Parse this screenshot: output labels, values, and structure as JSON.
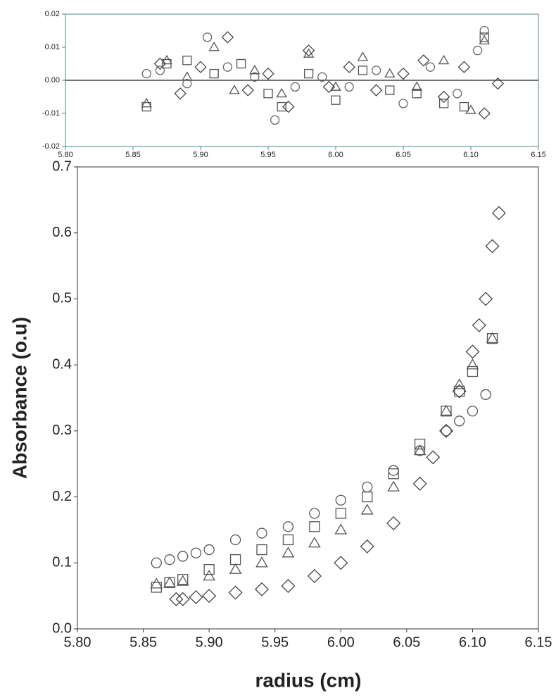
{
  "chart_data": [
    {
      "type": "scatter",
      "zero_line": true,
      "xlim": [
        5.8,
        6.15
      ],
      "xticks": [
        {
          "value": 5.8,
          "label": "5.80"
        },
        5.85,
        {
          "value": 5.9,
          "label": "5.90"
        },
        5.95,
        {
          "value": 6.0,
          "label": "6.00"
        },
        6.05,
        {
          "value": 6.1,
          "label": "6.10"
        },
        6.15
      ],
      "ylim": [
        -0.02,
        0.02
      ],
      "yticks": [
        -0.02,
        -0.01,
        {
          "value": 0,
          "label": "0.00"
        },
        0.01,
        0.02
      ],
      "series": [
        {
          "marker": "circle",
          "color": "#666666",
          "x": [
            5.86,
            5.87,
            5.89,
            5.905,
            5.92,
            5.94,
            5.955,
            5.97,
            5.99,
            6.01,
            6.03,
            6.05,
            6.07,
            6.09,
            6.105,
            6.11
          ],
          "values": [
            0.002,
            0.003,
            -0.001,
            0.013,
            0.004,
            0.001,
            -0.012,
            -0.002,
            0.001,
            -0.002,
            0.003,
            -0.007,
            0.004,
            -0.004,
            0.009,
            0.015
          ]
        },
        {
          "marker": "square",
          "color": "#555555",
          "x": [
            5.86,
            5.875,
            5.89,
            5.91,
            5.93,
            5.95,
            5.96,
            5.98,
            6.0,
            6.02,
            6.04,
            6.06,
            6.08,
            6.095,
            6.11
          ],
          "values": [
            -0.008,
            0.005,
            0.006,
            0.002,
            0.005,
            -0.004,
            -0.008,
            0.002,
            -0.006,
            0.003,
            -0.003,
            -0.004,
            -0.007,
            -0.008,
            0.013
          ]
        },
        {
          "marker": "triangle",
          "color": "#555555",
          "x": [
            5.86,
            5.875,
            5.89,
            5.91,
            5.925,
            5.94,
            5.96,
            5.98,
            6.0,
            6.02,
            6.04,
            6.06,
            6.08,
            6.1,
            6.11
          ],
          "values": [
            -0.007,
            0.006,
            0.001,
            0.01,
            -0.003,
            0.003,
            -0.004,
            0.008,
            -0.002,
            0.007,
            0.002,
            -0.002,
            0.006,
            -0.009,
            0.012
          ]
        },
        {
          "marker": "diamond",
          "color": "#444444",
          "x": [
            5.87,
            5.885,
            5.9,
            5.92,
            5.935,
            5.95,
            5.965,
            5.98,
            5.995,
            6.01,
            6.03,
            6.05,
            6.065,
            6.08,
            6.095,
            6.11,
            6.12
          ],
          "values": [
            0.005,
            -0.004,
            0.004,
            0.013,
            -0.003,
            0.002,
            -0.008,
            0.009,
            -0.002,
            0.004,
            -0.003,
            0.002,
            0.006,
            -0.005,
            0.004,
            -0.01,
            -0.001
          ]
        }
      ]
    },
    {
      "type": "scatter",
      "zero_line": false,
      "x_label": "radius (cm)",
      "y_label": "Absorbance (o.u)",
      "xlim": [
        5.8,
        6.15
      ],
      "xticks": [
        {
          "value": 5.8,
          "label": "5.80"
        },
        5.85,
        {
          "value": 5.9,
          "label": "5.90"
        },
        5.95,
        {
          "value": 6.0,
          "label": "6.00"
        },
        6.05,
        {
          "value": 6.1,
          "label": "6.10"
        },
        6.15
      ],
      "ylim": [
        0,
        0.7
      ],
      "yticks": [
        {
          "value": 0,
          "label": "0.0"
        },
        0.1,
        0.2,
        0.3,
        0.4,
        0.5,
        0.6,
        0.7
      ],
      "series": [
        {
          "marker": "circle",
          "color": "#555555",
          "x": [
            5.86,
            5.87,
            5.88,
            5.89,
            5.9,
            5.92,
            5.94,
            5.96,
            5.98,
            6.0,
            6.02,
            6.04,
            6.06,
            6.08,
            6.09,
            6.1,
            6.11
          ],
          "values": [
            0.1,
            0.105,
            0.11,
            0.115,
            0.12,
            0.135,
            0.145,
            0.155,
            0.175,
            0.195,
            0.215,
            0.24,
            0.27,
            0.3,
            0.315,
            0.33,
            0.355
          ]
        },
        {
          "marker": "square",
          "color": "#555555",
          "x": [
            5.86,
            5.87,
            5.88,
            5.9,
            5.92,
            5.94,
            5.96,
            5.98,
            6.0,
            6.02,
            6.04,
            6.06,
            6.08,
            6.09,
            6.1,
            6.115
          ],
          "values": [
            0.063,
            0.07,
            0.075,
            0.09,
            0.105,
            0.12,
            0.135,
            0.155,
            0.175,
            0.2,
            0.235,
            0.28,
            0.33,
            0.36,
            0.39,
            0.44
          ]
        },
        {
          "marker": "triangle",
          "color": "#555555",
          "x": [
            5.86,
            5.87,
            5.88,
            5.9,
            5.92,
            5.94,
            5.96,
            5.98,
            6.0,
            6.02,
            6.04,
            6.06,
            6.08,
            6.09,
            6.1,
            6.115
          ],
          "values": [
            0.068,
            0.07,
            0.072,
            0.08,
            0.09,
            0.1,
            0.115,
            0.13,
            0.15,
            0.18,
            0.215,
            0.27,
            0.33,
            0.37,
            0.4,
            0.44
          ]
        },
        {
          "marker": "diamond",
          "color": "#444444",
          "x": [
            5.875,
            5.88,
            5.89,
            5.9,
            5.92,
            5.94,
            5.96,
            5.98,
            6.0,
            6.02,
            6.04,
            6.06,
            6.07,
            6.08,
            6.09,
            6.1,
            6.105,
            6.11,
            6.115,
            6.12
          ],
          "values": [
            0.045,
            0.045,
            0.048,
            0.05,
            0.055,
            0.06,
            0.065,
            0.08,
            0.1,
            0.125,
            0.16,
            0.22,
            0.26,
            0.3,
            0.36,
            0.42,
            0.46,
            0.5,
            0.58,
            0.63
          ]
        }
      ]
    }
  ]
}
